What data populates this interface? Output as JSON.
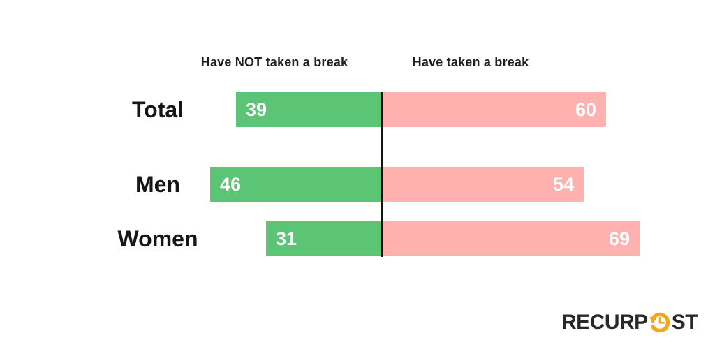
{
  "chart_data": {
    "type": "bar",
    "orientation": "horizontal-diverging",
    "title": "",
    "categories": [
      "Total",
      "Men",
      "Women"
    ],
    "series": [
      {
        "name": "Have NOT taken a break",
        "side": "left",
        "color": "#5cc475",
        "values": [
          39,
          46,
          31
        ]
      },
      {
        "name": "Have taken a break",
        "side": "right",
        "color": "#ffb1b0",
        "values": [
          60,
          54,
          69
        ]
      }
    ],
    "legend_position": "top",
    "value_labels": "inside bar ends, white bold",
    "axes": "none; black vertical divider line separates the two sides",
    "xlim_each_side": [
      0,
      75
    ],
    "grid": false
  },
  "legend": {
    "left": "Have NOT taken a break",
    "right": "Have taken a break"
  },
  "colors": {
    "left_bar": "#5cc475",
    "right_bar": "#ffb1b0",
    "divider": "#141414",
    "value_text": "#ffffff",
    "category_text": "#161616",
    "legend_text": "#1f1f1f",
    "background": "#ffffff",
    "logo_text": "#282828",
    "logo_accent": "#f2a71d"
  },
  "logo": {
    "brand": "RecurPost",
    "text_before_icon": "RECURP",
    "text_after_icon": "ST",
    "icon": "clock-refresh-icon"
  }
}
